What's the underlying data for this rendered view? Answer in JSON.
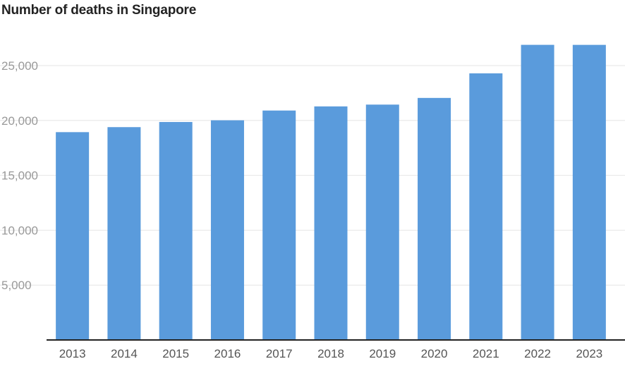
{
  "chart_data": {
    "type": "bar",
    "title": "Number of deaths in Singapore",
    "xlabel": "",
    "ylabel": "",
    "categories": [
      "2013",
      "2014",
      "2015",
      "2016",
      "2017",
      "2018",
      "2019",
      "2020",
      "2021",
      "2022",
      "2023"
    ],
    "values": [
      18937,
      19393,
      19862,
      20017,
      20905,
      21282,
      21446,
      22054,
      24292,
      26891,
      26888
    ],
    "ylim": [
      0,
      27500
    ],
    "yticks": [
      5000,
      10000,
      15000,
      20000,
      25000
    ],
    "ytick_labels": [
      "5,000",
      "10,000",
      "15,000",
      "20,000",
      "25,000"
    ],
    "grid": true,
    "bar_color": "#5a9bdc",
    "grid_color": "#e6e6e6",
    "axis_color": "#222222"
  }
}
